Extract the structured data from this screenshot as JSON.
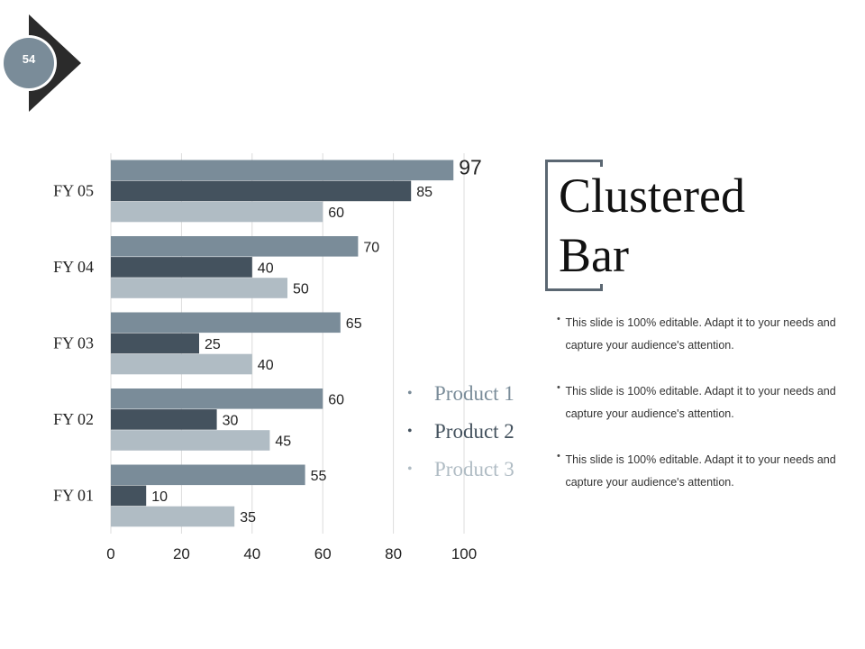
{
  "slide_number": "54",
  "title_line1": "Clustered",
  "title_line2": "Bar",
  "notes": [
    {
      "text": "This slide is 100% editable. Adapt it to your needs and capture your audience's attention."
    },
    {
      "text": "This slide is 100% editable. Adapt it to your needs and capture your audience's attention."
    },
    {
      "text": "This slide is 100% editable. Adapt it to your needs and capture your audience's attention."
    }
  ],
  "legend": [
    {
      "label": "Product 1",
      "color": "#7a8c99"
    },
    {
      "label": "Product 2",
      "color": "#44525e"
    },
    {
      "label": "Product 3",
      "color": "#b0bcc4"
    }
  ],
  "chart_data": {
    "type": "bar",
    "orientation": "horizontal",
    "categories": [
      "FY 01",
      "FY 02",
      "FY 03",
      "FY 04",
      "FY 05"
    ],
    "series": [
      {
        "name": "Product 1",
        "values": [
          55,
          60,
          65,
          70,
          97
        ],
        "color": "#7a8c99"
      },
      {
        "name": "Product 2",
        "values": [
          10,
          30,
          25,
          40,
          85
        ],
        "color": "#44525e"
      },
      {
        "name": "Product 3",
        "values": [
          35,
          45,
          40,
          50,
          60
        ],
        "color": "#b0bcc4"
      }
    ],
    "xlim": [
      0,
      100
    ],
    "xticks": [
      0,
      20,
      40,
      60,
      80,
      100
    ],
    "grid": true,
    "legend_position": "bottom-right"
  }
}
